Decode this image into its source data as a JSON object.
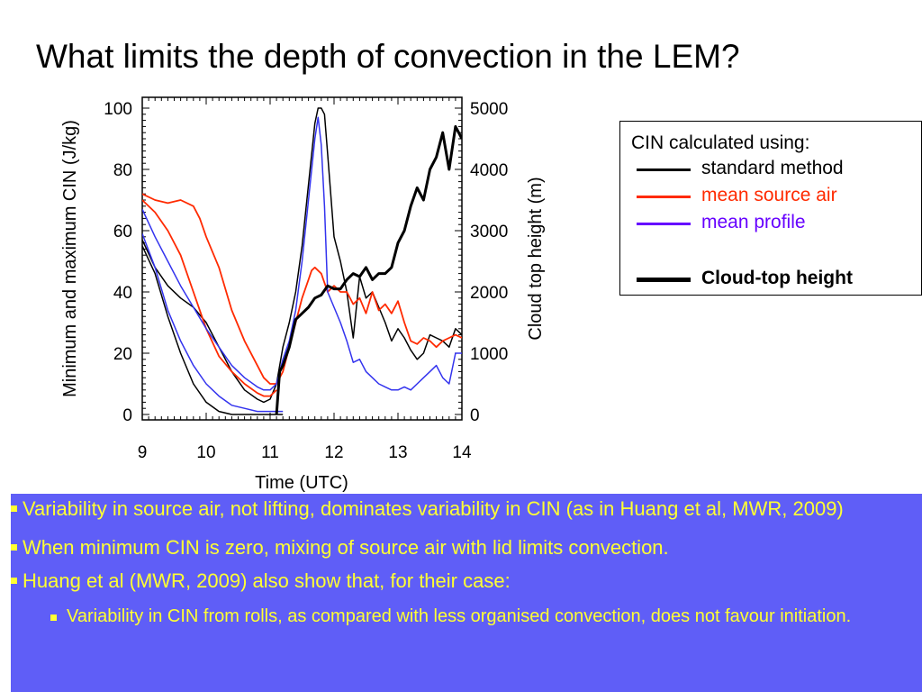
{
  "slide": {
    "title": "What limits the depth of convection in the LEM?"
  },
  "legend": {
    "heading": "CIN calculated using:",
    "items": [
      {
        "label": "standard method",
        "color": "#000000"
      },
      {
        "label": "mean source air",
        "color": "#ff2a00"
      },
      {
        "label": "mean profile",
        "color": "#6600ff"
      },
      {
        "label": "Cloud-top height",
        "color": "#000000"
      }
    ]
  },
  "bullets": [
    "Variability in source air, not lifting,  dominates variability in CIN (as in Huang et al, MWR, 2009)",
    "When minimum CIN is zero, mixing of source air with lid limits convection.",
    "Huang et al (MWR, 2009) also show that, for their case:",
    "Variability in CIN from rolls, as compared with less organised convection, does not favour initiation."
  ],
  "chart_data": {
    "type": "line",
    "xlabel": "Time (UTC)",
    "ylabel": "Minimum and maximum CIN (J/kg)",
    "y2label": "Cloud top height (m)",
    "xlim": [
      9,
      14
    ],
    "ylim": [
      0,
      100
    ],
    "y2lim": [
      0,
      5000
    ],
    "xticks": [
      "9",
      "10",
      "11",
      "12",
      "13",
      "14"
    ],
    "yticks": [
      "0",
      "20",
      "40",
      "60",
      "80",
      "100"
    ],
    "y2ticks": [
      "0",
      "1000",
      "2000",
      "3000",
      "4000",
      "5000"
    ],
    "series": [
      {
        "name": "standard method max",
        "color": "#000000",
        "axis": "left",
        "width": 1.5,
        "x": [
          9,
          9.2,
          9.4,
          9.6,
          9.8,
          10,
          10.2,
          10.4,
          10.6,
          10.8,
          10.9,
          11,
          11.1,
          11.2,
          11.3,
          11.4,
          11.5,
          11.6,
          11.7,
          11.75,
          11.8,
          11.85,
          11.9,
          12,
          12.1,
          12.2,
          12.3,
          12.4,
          12.5,
          12.6,
          12.7,
          12.8,
          12.9,
          13,
          13.1,
          13.2,
          13.3,
          13.4,
          13.5,
          13.6,
          13.7,
          13.8,
          13.9,
          14
        ],
        "y": [
          57,
          48,
          42,
          38,
          35,
          30,
          22,
          14,
          8,
          5,
          4,
          5,
          10,
          22,
          30,
          40,
          55,
          75,
          95,
          100,
          100,
          98,
          85,
          58,
          50,
          40,
          25,
          45,
          38,
          40,
          35,
          30,
          24,
          28,
          25,
          21,
          18,
          20,
          26,
          25,
          24,
          22,
          28,
          26
        ]
      },
      {
        "name": "standard method min",
        "color": "#000000",
        "axis": "left",
        "width": 1.5,
        "x": [
          9,
          9.2,
          9.4,
          9.6,
          9.8,
          10,
          10.2,
          10.4,
          10.6,
          10.8,
          11,
          11.1,
          11.2
        ],
        "y": [
          55,
          46,
          32,
          20,
          10,
          4,
          1,
          0,
          0,
          0,
          0,
          0,
          0
        ]
      },
      {
        "name": "mean source air max",
        "color": "#ff2a00",
        "axis": "left",
        "width": 1.8,
        "x": [
          9,
          9.2,
          9.4,
          9.6,
          9.8,
          9.9,
          10,
          10.2,
          10.4,
          10.6,
          10.8,
          10.9,
          11,
          11.1,
          11.2,
          11.3,
          11.4,
          11.5,
          11.6,
          11.65,
          11.7,
          11.8,
          11.9,
          12,
          12.1,
          12.2,
          12.3,
          12.4,
          12.5,
          12.6,
          12.7,
          12.8,
          12.9,
          13,
          13.1,
          13.2,
          13.3,
          13.4,
          13.5,
          13.6,
          13.7,
          13.8,
          13.9,
          14
        ],
        "y": [
          72,
          70,
          69,
          70,
          68,
          64,
          58,
          48,
          34,
          24,
          16,
          12,
          10,
          10,
          14,
          22,
          30,
          38,
          44,
          47,
          48,
          46,
          40,
          42,
          40,
          40,
          36,
          38,
          33,
          40,
          34,
          36,
          33,
          37,
          30,
          24,
          23,
          25,
          24,
          22,
          24,
          25,
          26,
          25
        ]
      },
      {
        "name": "mean source air min",
        "color": "#ff2a00",
        "axis": "left",
        "width": 1.8,
        "x": [
          9,
          9.2,
          9.4,
          9.6,
          9.8,
          10,
          10.2,
          10.4,
          10.6,
          10.8,
          10.9,
          11,
          11.1
        ],
        "y": [
          70,
          66,
          60,
          52,
          40,
          28,
          19,
          14,
          10,
          7,
          6,
          6,
          8
        ]
      },
      {
        "name": "mean profile max",
        "color": "#3333ee",
        "axis": "left",
        "width": 1.5,
        "x": [
          9,
          9.2,
          9.4,
          9.6,
          9.8,
          10,
          10.2,
          10.4,
          10.6,
          10.8,
          10.9,
          11,
          11.1,
          11.2,
          11.3,
          11.4,
          11.5,
          11.6,
          11.7,
          11.75,
          11.8,
          11.85,
          11.9,
          12,
          12.1,
          12.2,
          12.3,
          12.4,
          12.5,
          12.6,
          12.7,
          12.8,
          12.9,
          13,
          13.1,
          13.2,
          13.3,
          13.4,
          13.5,
          13.6,
          13.7,
          13.8,
          13.9,
          14
        ],
        "y": [
          67,
          58,
          50,
          42,
          35,
          28,
          22,
          16,
          12,
          9,
          8,
          8,
          10,
          18,
          24,
          34,
          50,
          70,
          90,
          97,
          88,
          68,
          40,
          35,
          30,
          24,
          17,
          18,
          14,
          12,
          10,
          9,
          8,
          8,
          9,
          8,
          10,
          12,
          14,
          16,
          12,
          10,
          20,
          20
        ]
      },
      {
        "name": "mean profile min",
        "color": "#3333ee",
        "axis": "left",
        "width": 1.5,
        "x": [
          9,
          9.2,
          9.4,
          9.6,
          9.8,
          10,
          10.2,
          10.4,
          10.6,
          10.8,
          10.9,
          11,
          11.1,
          11.2
        ],
        "y": [
          59,
          48,
          34,
          24,
          16,
          10,
          6,
          3,
          2,
          1,
          1,
          1,
          1,
          1
        ]
      },
      {
        "name": "Cloud-top height",
        "color": "#000000",
        "axis": "right",
        "width": 3,
        "x": [
          11.1,
          11.15,
          11.2,
          11.3,
          11.4,
          11.5,
          11.6,
          11.7,
          11.8,
          11.9,
          12,
          12.1,
          12.2,
          12.3,
          12.4,
          12.5,
          12.6,
          12.7,
          12.8,
          12.9,
          13,
          13.1,
          13.2,
          13.3,
          13.4,
          13.5,
          13.6,
          13.7,
          13.8,
          13.9,
          14
        ],
        "y": [
          0,
          700,
          800,
          1100,
          1550,
          1650,
          1750,
          1900,
          1950,
          2100,
          2050,
          2050,
          2200,
          2300,
          2250,
          2400,
          2200,
          2300,
          2300,
          2400,
          2800,
          3000,
          3400,
          3700,
          3500,
          4000,
          4200,
          4600,
          4000,
          4700,
          4500
        ]
      }
    ]
  }
}
